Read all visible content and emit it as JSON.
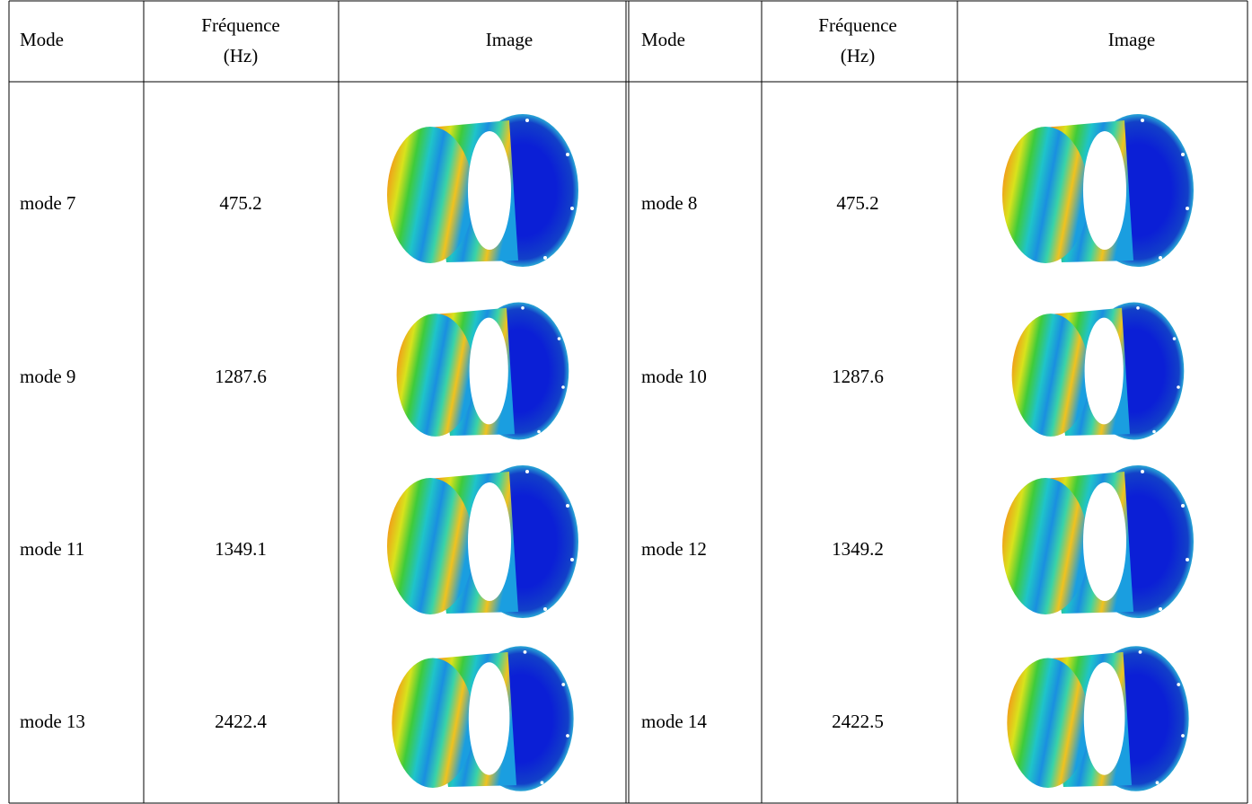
{
  "table": {
    "header": [
      "Mode",
      [
        "Fréquence",
        "(Hz)"
      ],
      "Image",
      "Mode",
      [
        "Fréquence",
        "(Hz)"
      ],
      "Image"
    ],
    "rows": [
      [
        "mode 7",
        "475.2",
        "mode 8",
        "475.2"
      ],
      [
        "mode 9",
        "1287.6",
        "mode 10",
        "1287.6"
      ],
      [
        "mode 11",
        "1349.1",
        "mode 12",
        "1349.2"
      ],
      [
        "mode 13",
        "2422.4",
        "mode 14",
        "2422.5"
      ]
    ]
  }
}
